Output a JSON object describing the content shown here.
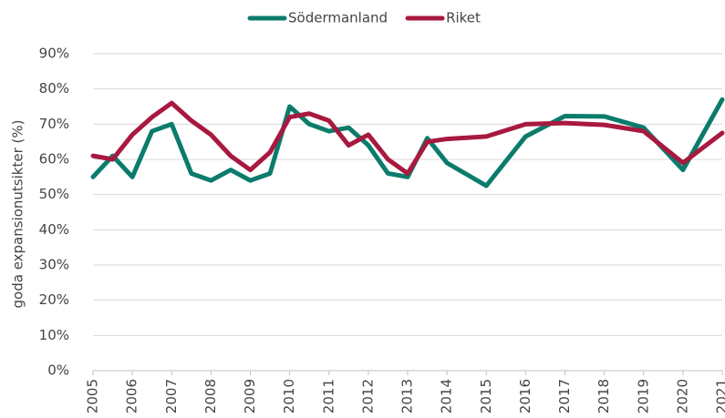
{
  "chart_data": {
    "type": "line",
    "y_label": "goda expansionutsikter (%)",
    "x": [
      2005,
      2005.5,
      2006,
      2006.5,
      2007,
      2007.5,
      2008,
      2008.5,
      2009,
      2009.5,
      2010,
      2010.5,
      2011,
      2011.5,
      2012,
      2012.5,
      2013,
      2013.5,
      2014,
      2015,
      2016,
      2017,
      2018,
      2019,
      2020,
      2021
    ],
    "series": [
      {
        "name": "Södermanland",
        "color": "#0b7b6c",
        "values": [
          55,
          61,
          55,
          68,
          70,
          56,
          54,
          57,
          54,
          56,
          75,
          70,
          68,
          69,
          64,
          56,
          55,
          66,
          59,
          52.5,
          66.5,
          72.3,
          72.2,
          69,
          57,
          77
        ]
      },
      {
        "name": "Riket",
        "color": "#a8193f",
        "values": [
          61,
          60,
          67,
          72,
          76,
          71,
          67,
          61,
          57,
          62,
          72,
          73,
          71,
          64,
          67,
          60,
          56,
          65,
          65.8,
          66.5,
          70,
          70.3,
          69.8,
          68,
          59,
          67.5
        ]
      }
    ],
    "xlim": [
      2005,
      2021
    ],
    "xticks": [
      2005,
      2006,
      2007,
      2008,
      2009,
      2010,
      2011,
      2012,
      2013,
      2014,
      2015,
      2016,
      2017,
      2018,
      2019,
      2020,
      2021
    ],
    "ylim": [
      0,
      90
    ],
    "yticks": [
      {
        "value": 0,
        "label": "0%"
      },
      {
        "value": 10,
        "label": "10%"
      },
      {
        "value": 20,
        "label": "20%"
      },
      {
        "value": 30,
        "label": "30%"
      },
      {
        "value": 40,
        "label": "40%"
      },
      {
        "value": 50,
        "label": "50%"
      },
      {
        "value": 60,
        "label": "60%"
      },
      {
        "value": 70,
        "label": "70%"
      },
      {
        "value": 80,
        "label": "80%"
      },
      {
        "value": 90,
        "label": "90%"
      }
    ],
    "grid": true,
    "legend": "top"
  }
}
